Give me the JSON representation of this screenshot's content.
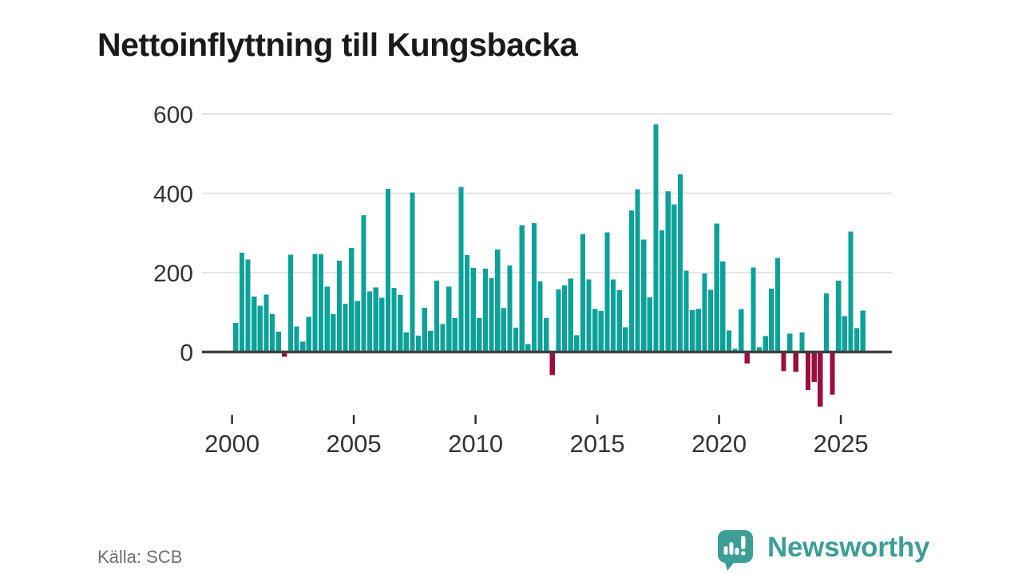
{
  "title": "Nettoinflyttning till Kungsbacka",
  "source": "Källa: SCB",
  "branding": {
    "name": "Newsworthy",
    "logo_icon": "speech-bubble-bar-chart-icon"
  },
  "colors": {
    "positive_bar": "#0ba29a",
    "negative_bar": "#9b0e3e",
    "grid_line": "#e6e6e6",
    "axis_line": "#3f3f3f",
    "axis_text": "#333333",
    "title_text": "#1a1a1a",
    "source_text": "#6e6e78",
    "brand": "#3d9e97",
    "background": "#ffffff"
  },
  "chart_data": {
    "type": "bar",
    "title": "Nettoinflyttning till Kungsbacka",
    "xlabel": "",
    "ylabel": "",
    "frequency": "quarterly",
    "start_period": "2000 Q1",
    "end_period": "2025 Q4",
    "values": [
      73,
      250,
      233,
      140,
      117,
      145,
      95,
      51,
      -12,
      245,
      64,
      26,
      88,
      247,
      246,
      165,
      95,
      230,
      122,
      262,
      129,
      345,
      153,
      163,
      137,
      411,
      162,
      144,
      49,
      402,
      41,
      112,
      53,
      180,
      70,
      165,
      85,
      416,
      244,
      212,
      85,
      210,
      186,
      258,
      111,
      218,
      61,
      320,
      20,
      325,
      178,
      85,
      -58,
      158,
      168,
      185,
      42,
      298,
      183,
      109,
      104,
      302,
      183,
      156,
      62,
      357,
      410,
      283,
      138,
      574,
      307,
      405,
      372,
      448,
      205,
      106,
      109,
      198,
      157,
      324,
      228,
      54,
      8,
      108,
      -29,
      213,
      12,
      40,
      160,
      237,
      -48,
      46,
      -50,
      49,
      -95,
      -75,
      -138,
      148,
      -108,
      180,
      90,
      304,
      60,
      105
    ],
    "x_tick_labels": [
      "2000",
      "2005",
      "2010",
      "2015",
      "2020",
      "2025"
    ],
    "x_tick_years": [
      2000,
      2005,
      2010,
      2015,
      2020,
      2025
    ],
    "y_tick_labels": [
      "0",
      "200",
      "400",
      "600"
    ],
    "y_tick_values": [
      0,
      200,
      400,
      600
    ],
    "ylim": [
      -150,
      620
    ],
    "grid": true,
    "legend": "none"
  }
}
